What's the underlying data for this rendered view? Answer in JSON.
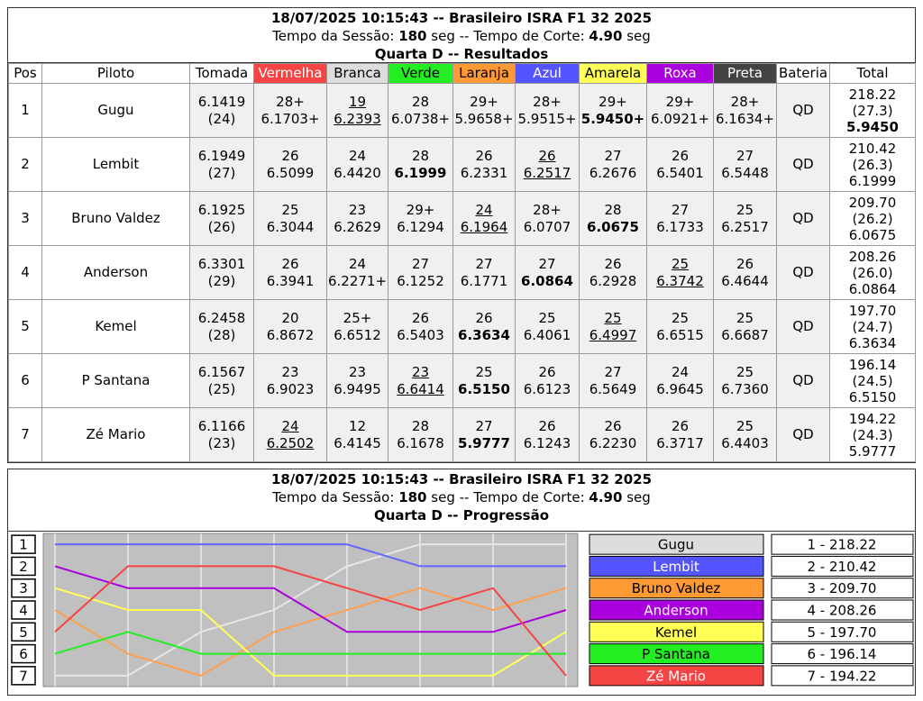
{
  "header": {
    "datetime_title": "18/07/2025 10:15:43 -- Brasileiro ISRA F1 32 2025",
    "session_label": "Tempo da Sessão:",
    "session_value": "180",
    "cut_label": "seg -- Tempo de Corte:",
    "cut_value": "4.90",
    "cut_unit": "seg",
    "results_title": "Quarta D -- Resultados",
    "progression_title": "Quarta D -- Progressão"
  },
  "table": {
    "columns": [
      {
        "label": "Pos"
      },
      {
        "label": "Piloto"
      },
      {
        "label": "Tomada"
      },
      {
        "label": "Vermelha",
        "bg": "#f44444",
        "fg": "#ffffff"
      },
      {
        "label": "Branca",
        "bg": "#dddddd",
        "fg": "#000000"
      },
      {
        "label": "Verde",
        "bg": "#22ee22",
        "fg": "#000000"
      },
      {
        "label": "Laranja",
        "bg": "#ff9933",
        "fg": "#000000"
      },
      {
        "label": "Azul",
        "bg": "#5555ff",
        "fg": "#ffffff"
      },
      {
        "label": "Amarela",
        "bg": "#ffff55",
        "fg": "#000000"
      },
      {
        "label": "Roxa",
        "bg": "#aa00dd",
        "fg": "#ffffff"
      },
      {
        "label": "Preta",
        "bg": "#444444",
        "fg": "#ffffff"
      },
      {
        "label": "Bateria"
      },
      {
        "label": "Total"
      }
    ],
    "rows": [
      {
        "pos": "1",
        "driver": "Gugu",
        "tomada": "6.1419",
        "tomada_laps": "(24)",
        "lanes": [
          {
            "laps": "28+",
            "time": "6.1703+"
          },
          {
            "laps": "19",
            "time": "6.2393",
            "underline": true
          },
          {
            "laps": "28",
            "time": "6.0738+"
          },
          {
            "laps": "29+",
            "time": "5.9658+"
          },
          {
            "laps": "28+",
            "time": "5.9515+"
          },
          {
            "laps": "29+",
            "time": "5.9450+",
            "bold": true
          },
          {
            "laps": "29+",
            "time": "6.0921+"
          },
          {
            "laps": "28+",
            "time": "6.1634+"
          }
        ],
        "battery": "QD",
        "total": "218.22",
        "avg": "(27.3)",
        "best": "5.9450",
        "best_bold": true
      },
      {
        "pos": "2",
        "driver": "Lembit",
        "tomada": "6.1949",
        "tomada_laps": "(27)",
        "lanes": [
          {
            "laps": "26",
            "time": "6.5099"
          },
          {
            "laps": "24",
            "time": "6.4420"
          },
          {
            "laps": "28",
            "time": "6.1999",
            "bold": true
          },
          {
            "laps": "26",
            "time": "6.2331"
          },
          {
            "laps": "26",
            "time": "6.2517",
            "underline": true
          },
          {
            "laps": "27",
            "time": "6.2676"
          },
          {
            "laps": "26",
            "time": "6.5401"
          },
          {
            "laps": "27",
            "time": "6.5448"
          }
        ],
        "battery": "QD",
        "total": "210.42",
        "avg": "(26.3)",
        "best": "6.1999"
      },
      {
        "pos": "3",
        "driver": "Bruno Valdez",
        "tomada": "6.1925",
        "tomada_laps": "(26)",
        "lanes": [
          {
            "laps": "25",
            "time": "6.3044"
          },
          {
            "laps": "23",
            "time": "6.2629"
          },
          {
            "laps": "29+",
            "time": "6.1294"
          },
          {
            "laps": "24",
            "time": "6.1964",
            "underline": true
          },
          {
            "laps": "28+",
            "time": "6.0707"
          },
          {
            "laps": "28",
            "time": "6.0675",
            "bold": true
          },
          {
            "laps": "27",
            "time": "6.1733"
          },
          {
            "laps": "25",
            "time": "6.2517"
          }
        ],
        "battery": "QD",
        "total": "209.70",
        "avg": "(26.2)",
        "best": "6.0675"
      },
      {
        "pos": "4",
        "driver": "Anderson",
        "tomada": "6.3301",
        "tomada_laps": "(29)",
        "lanes": [
          {
            "laps": "26",
            "time": "6.3941"
          },
          {
            "laps": "24",
            "time": "6.2271+"
          },
          {
            "laps": "27",
            "time": "6.1252"
          },
          {
            "laps": "27",
            "time": "6.1771"
          },
          {
            "laps": "27",
            "time": "6.0864",
            "bold": true
          },
          {
            "laps": "26",
            "time": "6.2928"
          },
          {
            "laps": "25",
            "time": "6.3742",
            "underline": true
          },
          {
            "laps": "26",
            "time": "6.4644"
          }
        ],
        "battery": "QD",
        "total": "208.26",
        "avg": "(26.0)",
        "best": "6.0864"
      },
      {
        "pos": "5",
        "driver": "Kemel",
        "tomada": "6.2458",
        "tomada_laps": "(28)",
        "lanes": [
          {
            "laps": "20",
            "time": "6.8672"
          },
          {
            "laps": "25+",
            "time": "6.6512"
          },
          {
            "laps": "26",
            "time": "6.5403"
          },
          {
            "laps": "26",
            "time": "6.3634",
            "bold": true
          },
          {
            "laps": "25",
            "time": "6.4061"
          },
          {
            "laps": "25",
            "time": "6.4997",
            "underline": true
          },
          {
            "laps": "25",
            "time": "6.6515"
          },
          {
            "laps": "25",
            "time": "6.6687"
          }
        ],
        "battery": "QD",
        "total": "197.70",
        "avg": "(24.7)",
        "best": "6.3634"
      },
      {
        "pos": "6",
        "driver": "P Santana",
        "tomada": "6.1567",
        "tomada_laps": "(25)",
        "lanes": [
          {
            "laps": "23",
            "time": "6.9023"
          },
          {
            "laps": "23",
            "time": "6.9495"
          },
          {
            "laps": "23",
            "time": "6.6414",
            "underline": true
          },
          {
            "laps": "25",
            "time": "6.5150",
            "bold": true
          },
          {
            "laps": "26",
            "time": "6.6123"
          },
          {
            "laps": "27",
            "time": "6.5649"
          },
          {
            "laps": "24",
            "time": "6.9645"
          },
          {
            "laps": "25",
            "time": "6.7360"
          }
        ],
        "battery": "QD",
        "total": "196.14",
        "avg": "(24.5)",
        "best": "6.5150"
      },
      {
        "pos": "7",
        "driver": "Zé Mario",
        "tomada": "6.1166",
        "tomada_laps": "(23)",
        "lanes": [
          {
            "laps": "24",
            "time": "6.2502",
            "underline": true
          },
          {
            "laps": "12",
            "time": "6.4145"
          },
          {
            "laps": "28",
            "time": "6.1678"
          },
          {
            "laps": "27",
            "time": "5.9777",
            "bold": true
          },
          {
            "laps": "26",
            "time": "6.1243"
          },
          {
            "laps": "26",
            "time": "6.2230"
          },
          {
            "laps": "26",
            "time": "6.3717"
          },
          {
            "laps": "25",
            "time": "6.4403"
          }
        ],
        "battery": "QD",
        "total": "194.22",
        "avg": "(24.3)",
        "best": "5.9777"
      }
    ]
  },
  "chart_data": {
    "type": "line",
    "categories": [
      null,
      null,
      null,
      null,
      null,
      null,
      null,
      null
    ],
    "ylim": [
      0.5,
      7.5
    ],
    "inverted": true,
    "yticks": [
      1,
      2,
      3,
      4,
      5,
      6,
      7
    ],
    "grid": true,
    "background": "#c0c0c0",
    "series": [
      {
        "name": "Gugu",
        "color": "#e6e6e6",
        "box_color": "#dddddd",
        "text_color": "#000000",
        "values": [
          7,
          7,
          5,
          4,
          2,
          1,
          1,
          1
        ],
        "standing": "1 - 218.22"
      },
      {
        "name": "Lembit",
        "color": "#6666ff",
        "box_color": "#5555ff",
        "text_color": "#ffffff",
        "values": [
          1,
          1,
          1,
          1,
          1,
          2,
          2,
          2
        ],
        "standing": "2 - 210.42"
      },
      {
        "name": "Bruno Valdez",
        "color": "#ffa050",
        "box_color": "#ff9933",
        "text_color": "#000000",
        "values": [
          4,
          6,
          7,
          5,
          4,
          3,
          4,
          3
        ],
        "standing": "3 - 209.70"
      },
      {
        "name": "Anderson",
        "color": "#aa00dd",
        "box_color": "#aa00dd",
        "text_color": "#ffffff",
        "values": [
          2,
          3,
          3,
          3,
          5,
          5,
          5,
          4
        ],
        "standing": "4 - 208.26"
      },
      {
        "name": "Kemel",
        "color": "#ffff55",
        "box_color": "#ffff55",
        "text_color": "#000000",
        "values": [
          3,
          4,
          4,
          7,
          7,
          7,
          7,
          5
        ],
        "standing": "5 - 197.70"
      },
      {
        "name": "P Santana",
        "color": "#22ee22",
        "box_color": "#22ee22",
        "text_color": "#000000",
        "values": [
          6,
          5,
          6,
          6,
          6,
          6,
          6,
          6
        ],
        "standing": "6 - 196.14"
      },
      {
        "name": "Zé Mario",
        "color": "#f44444",
        "box_color": "#f44444",
        "text_color": "#ffffff",
        "values": [
          5,
          2,
          2,
          2,
          3,
          4,
          3,
          7
        ],
        "standing": "7 - 194.22"
      }
    ]
  }
}
